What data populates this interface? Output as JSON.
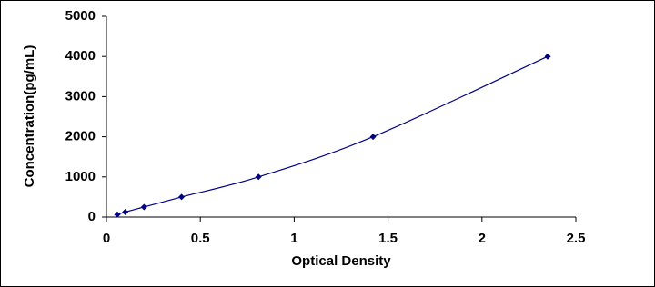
{
  "chart_data": {
    "type": "line",
    "x_label": "Optical Density",
    "y_label": "Concentration(pg/mL)",
    "x": [
      0.058,
      0.1,
      0.2,
      0.4,
      0.81,
      1.42,
      2.35
    ],
    "series": [
      {
        "color": "#00008b",
        "values": [
          62.5,
          125,
          250,
          500,
          1000,
          2000,
          4000
        ]
      }
    ],
    "xlim": [
      0,
      2.5
    ],
    "xticks": [
      0,
      0.5,
      1,
      1.5,
      2,
      2.5
    ],
    "ylim": [
      0,
      5000
    ],
    "yticks": [
      0,
      1000,
      2000,
      3000,
      4000,
      5000
    ],
    "smooth": true,
    "markers": "diamond",
    "grid": false
  }
}
